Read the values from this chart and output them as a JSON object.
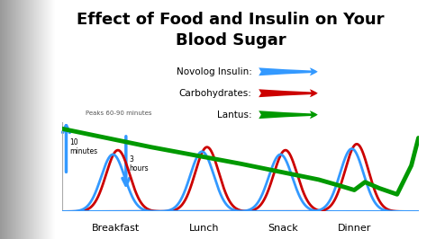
{
  "title": "Effect of Food and Insulin on Your\nBlood Sugar",
  "title_fontsize": 13,
  "meal_labels": [
    "Breakfast",
    "Lunch",
    "Snack",
    "Dinner"
  ],
  "legend_items": [
    {
      "label": "Novolog Insulin:",
      "color": "#3399ff"
    },
    {
      "label": "Carbohydrates:",
      "color": "#cc0000"
    },
    {
      "label": "Lantus:",
      "color": "#009900"
    }
  ],
  "annotation_peaks": "Peaks 60-90 minutes",
  "annotation_10min": "10\nminutes",
  "annotation_3hr": "3\nhours"
}
